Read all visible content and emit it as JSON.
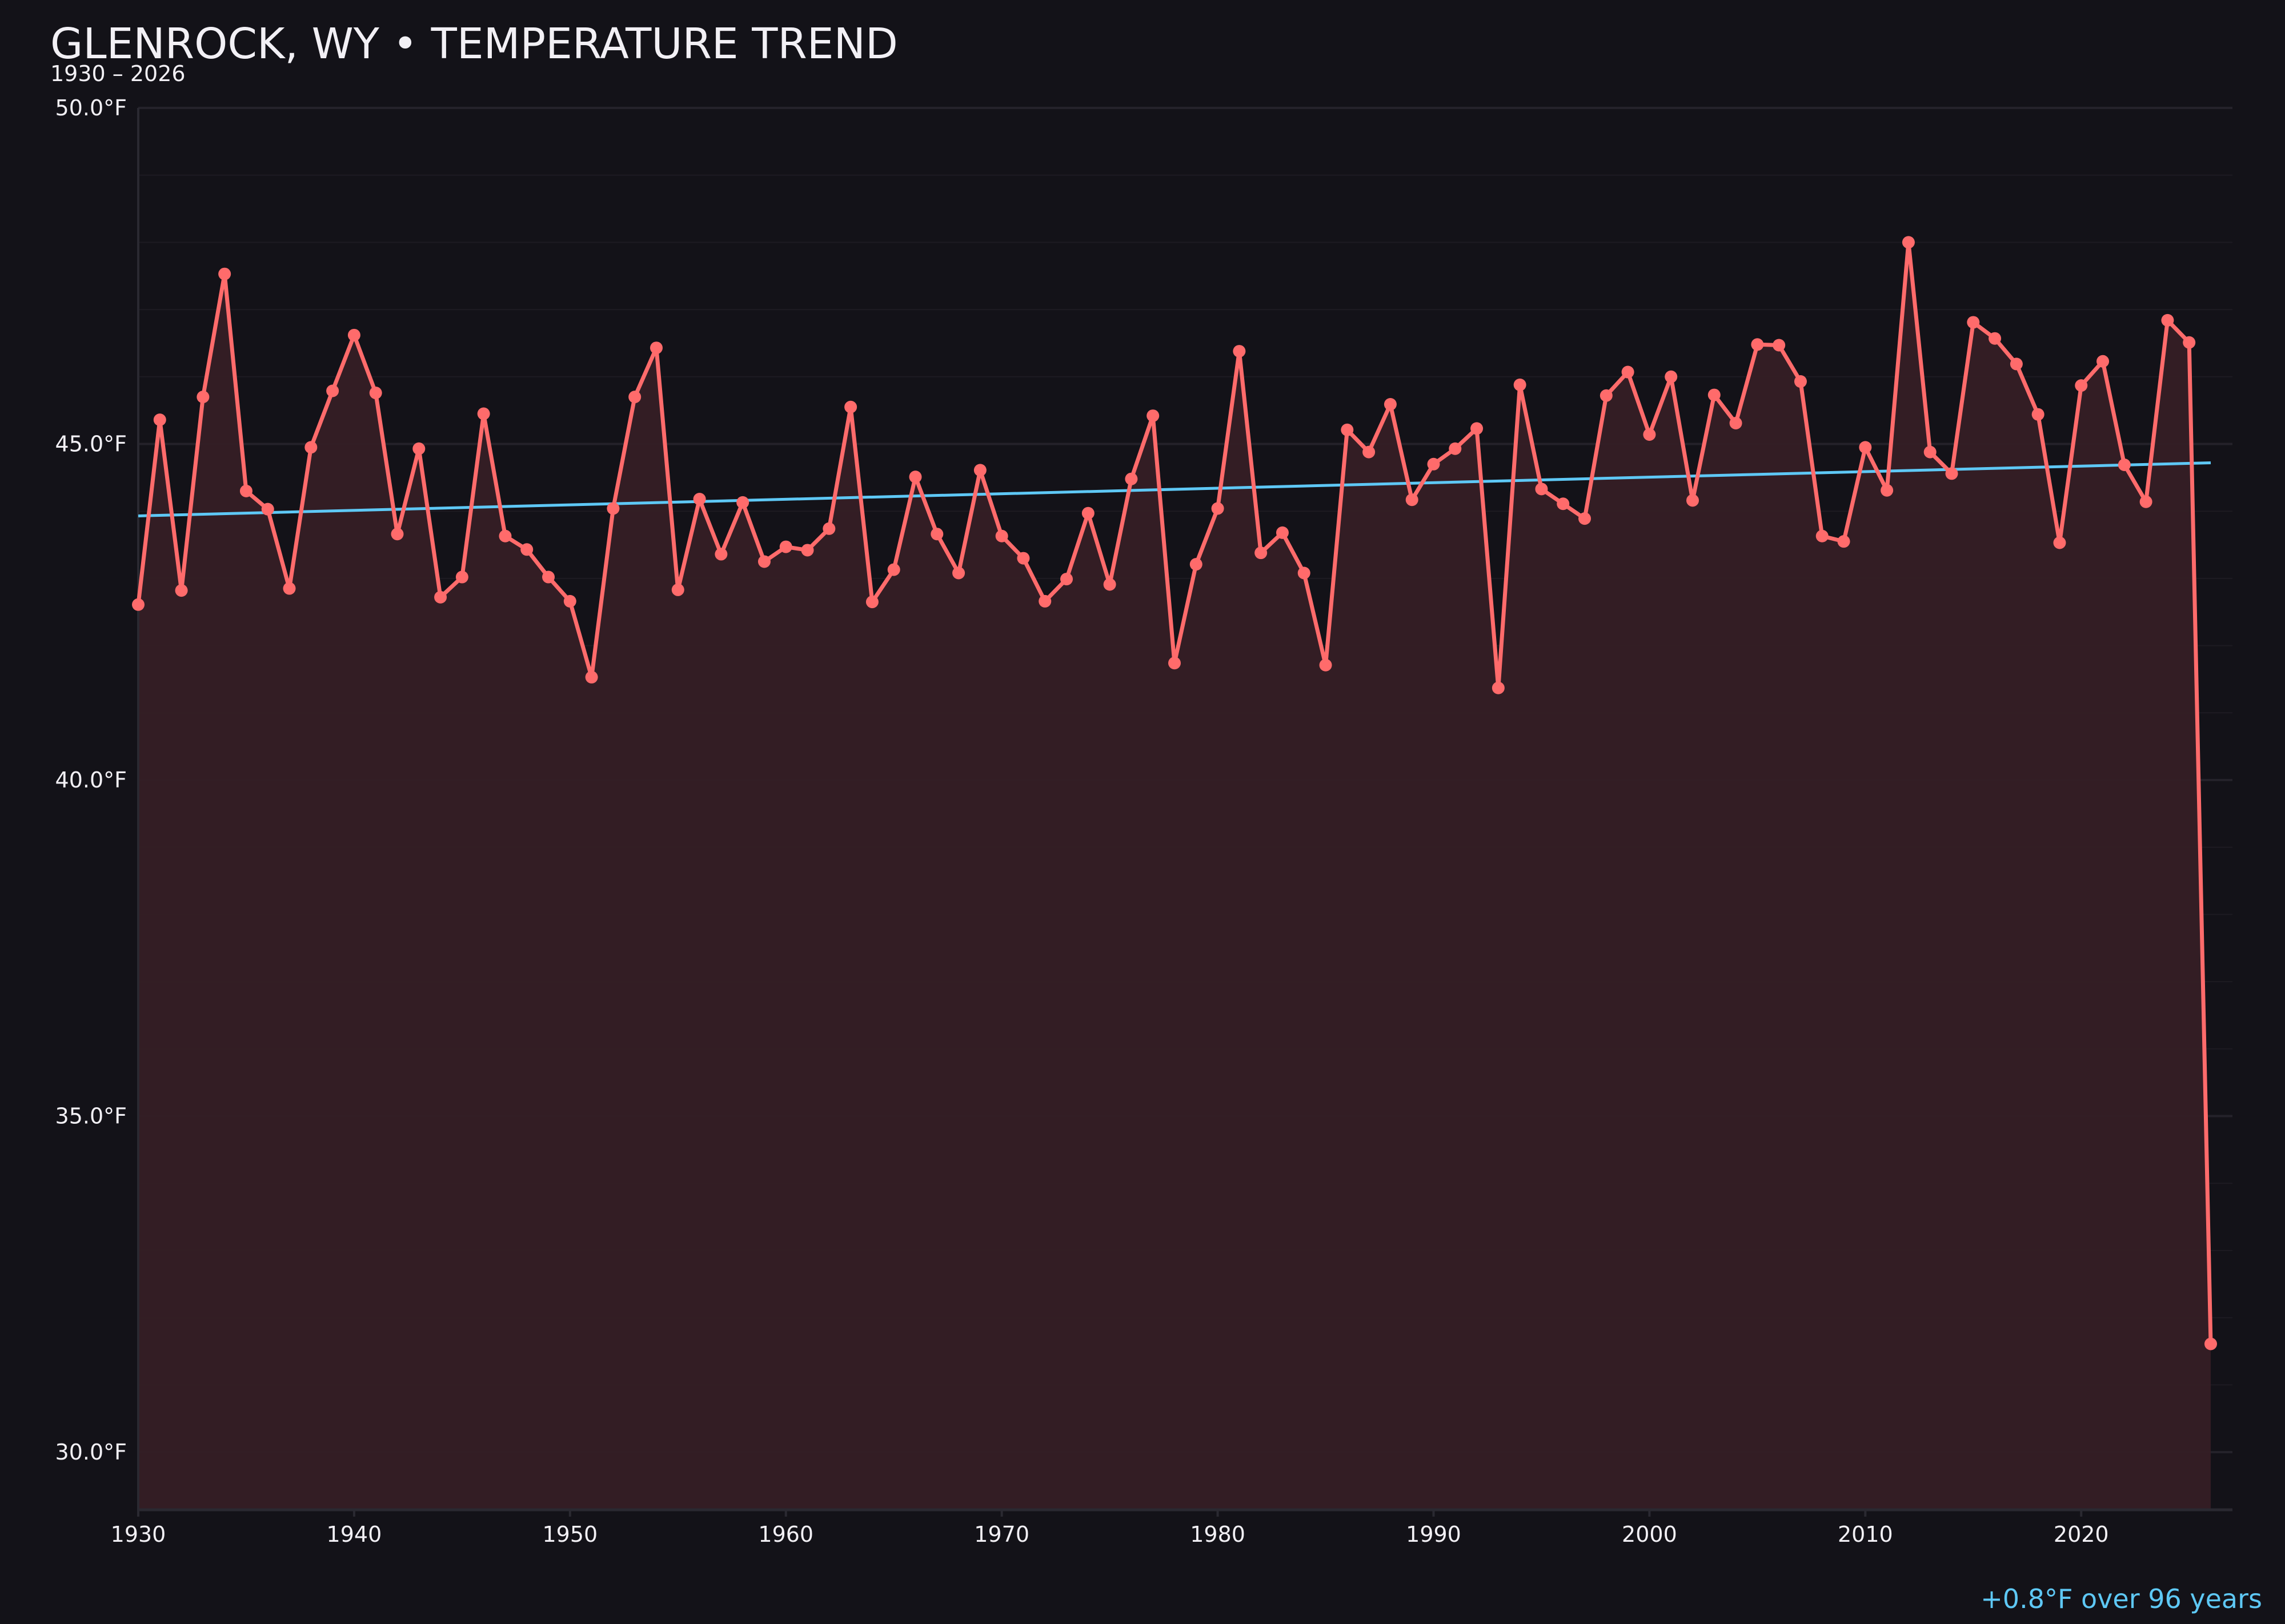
{
  "header": {
    "title": "GLENROCK, WY • TEMPERATURE TREND",
    "subtitle": "1930 – 2026"
  },
  "annotation": "+0.8°F over 96 years",
  "colors": {
    "background": "#131218",
    "series": "#ff6b6b",
    "fill": "#351f25",
    "trend": "#5ec8f5",
    "grid": "#24222a",
    "text": "#f2f0f5"
  },
  "chart_data": {
    "type": "line",
    "title": "GLENROCK, WY • TEMPERATURE TREND",
    "subtitle": "1930 – 2026",
    "xlabel": "",
    "ylabel": "",
    "xlim": [
      1930,
      2026
    ],
    "ylim": [
      29.15,
      50
    ],
    "grid": true,
    "area_fill": true,
    "x_ticks": [
      "1930",
      "1940",
      "1950",
      "1960",
      "1970",
      "1980",
      "1990",
      "2000",
      "2010",
      "2020"
    ],
    "y_ticks": [
      "30.0°F",
      "35.0°F",
      "40.0°F",
      "45.0°F",
      "50.0°F"
    ],
    "x": [
      1930,
      1931,
      1932,
      1933,
      1934,
      1935,
      1936,
      1937,
      1938,
      1939,
      1940,
      1941,
      1942,
      1943,
      1944,
      1945,
      1946,
      1947,
      1948,
      1949,
      1950,
      1951,
      1952,
      1953,
      1954,
      1955,
      1956,
      1957,
      1958,
      1959,
      1960,
      1961,
      1962,
      1963,
      1964,
      1965,
      1966,
      1967,
      1968,
      1969,
      1970,
      1971,
      1972,
      1973,
      1974,
      1975,
      1976,
      1977,
      1978,
      1979,
      1980,
      1981,
      1982,
      1983,
      1984,
      1985,
      1986,
      1987,
      1988,
      1989,
      1990,
      1991,
      1992,
      1993,
      1994,
      1995,
      1996,
      1997,
      1998,
      1999,
      2000,
      2001,
      2002,
      2003,
      2004,
      2005,
      2006,
      2007,
      2008,
      2009,
      2010,
      2011,
      2012,
      2013,
      2014,
      2015,
      2016,
      2017,
      2018,
      2019,
      2020,
      2021,
      2022,
      2023,
      2024,
      2025,
      2026
    ],
    "series": [
      {
        "values": [
          42.61,
          45.36,
          42.82,
          45.7,
          47.53,
          44.3,
          44.03,
          42.85,
          44.95,
          45.79,
          46.62,
          45.76,
          43.66,
          44.93,
          42.72,
          43.02,
          45.45,
          43.63,
          43.43,
          43.02,
          42.66,
          41.53,
          44.04,
          45.7,
          46.43,
          42.83,
          44.18,
          43.36,
          44.13,
          43.25,
          43.47,
          43.42,
          43.74,
          45.55,
          42.65,
          43.13,
          44.51,
          43.66,
          43.08,
          44.61,
          43.63,
          43.3,
          42.66,
          42.99,
          43.97,
          42.91,
          44.48,
          45.42,
          41.74,
          43.21,
          44.04,
          46.38,
          43.38,
          43.68,
          43.08,
          41.71,
          45.21,
          44.88,
          45.59,
          44.17,
          44.7,
          44.93,
          45.23,
          41.37,
          45.88,
          44.33,
          44.11,
          43.89,
          45.72,
          46.07,
          45.14,
          46.0,
          44.16,
          45.73,
          45.31,
          46.48,
          46.47,
          45.93,
          43.63,
          43.55,
          44.95,
          44.31,
          48.0,
          44.88,
          44.56,
          46.81,
          46.57,
          46.19,
          45.44,
          43.53,
          45.87,
          46.23,
          44.69,
          44.14,
          46.84,
          46.51,
          31.61
        ]
      }
    ],
    "trend": {
      "x": [
        1930,
        2026
      ],
      "y": [
        43.93,
        44.72
      ]
    }
  }
}
